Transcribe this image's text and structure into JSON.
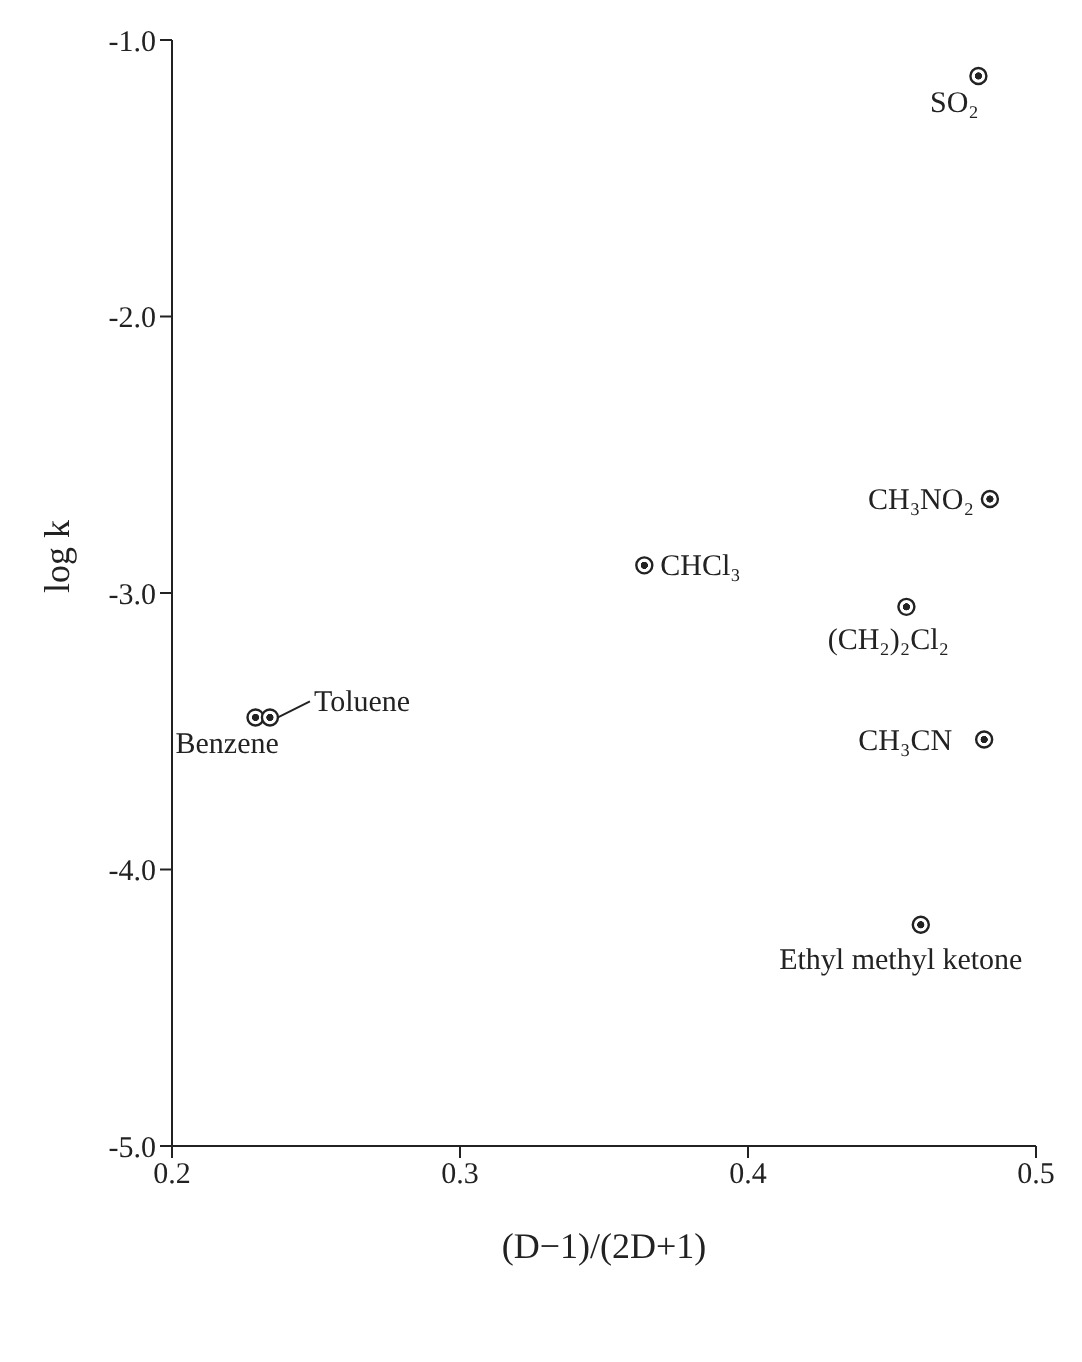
{
  "chart_data": {
    "type": "scatter",
    "xlabel": "(D−1)/(2D+1)",
    "ylabel": "log k",
    "x": [
      0.48,
      0.484,
      0.364,
      0.455,
      0.482,
      0.229,
      0.234,
      0.46
    ],
    "values": [
      -1.13,
      -2.66,
      -2.9,
      -3.05,
      -3.53,
      -3.45,
      -3.45,
      -4.2
    ],
    "color": "#222222",
    "marker": "circle",
    "grid": false,
    "xlim": [
      0.2,
      0.5
    ],
    "xticks": [
      0.2,
      0.3,
      0.4,
      0.5
    ],
    "ylim": [
      -5,
      -1
    ],
    "yticks": [
      {
        "value": -5,
        "label": "-5.0"
      },
      {
        "value": -4,
        "label": "-4.0"
      },
      {
        "value": -3,
        "label": "-3.0"
      },
      {
        "value": -2,
        "label": "-2.0"
      },
      {
        "value": -1,
        "label": "-1.0"
      }
    ],
    "annotations": [
      {
        "text": "SO₂",
        "x": 0.48,
        "y": -1.13
      },
      {
        "text": "CH₃NO₂",
        "x": 0.484,
        "y": -2.66
      },
      {
        "text": "CHCl₃",
        "x": 0.364,
        "y": -2.9
      },
      {
        "text": "(CH₂)₂Cl₂",
        "x": 0.455,
        "y": -3.05
      },
      {
        "text": "CH₃CN",
        "x": 0.482,
        "y": -3.53
      },
      {
        "text": "Benzene",
        "x": 0.229,
        "y": -3.45
      },
      {
        "text": "Toluene",
        "x": 0.234,
        "y": -3.45
      },
      {
        "text": "Ethyl methyl ketone",
        "x": 0.46,
        "y": -4.2
      }
    ]
  }
}
